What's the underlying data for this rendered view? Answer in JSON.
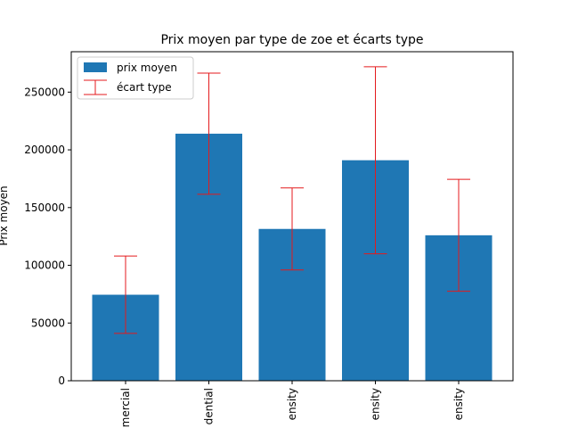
{
  "chart_data": {
    "type": "bar",
    "title": "Prix moyen par type de zoe et écarts type",
    "xlabel": "",
    "ylabel": "Prix moyen",
    "categories": [
      "mercial",
      "dential",
      "ensity",
      "ensity",
      "ensity"
    ],
    "values": [
      74500,
      214000,
      131500,
      191000,
      126000
    ],
    "error": [
      33500,
      52500,
      35500,
      81000,
      48500
    ],
    "ylim": [
      0,
      285000
    ],
    "yticks": [
      0,
      50000,
      100000,
      150000,
      200000,
      250000
    ],
    "ytick_labels": [
      "0",
      "50000",
      "100000",
      "150000",
      "200000",
      "250000"
    ],
    "legend": {
      "placement": "upper-left",
      "bar_label": "prix moyen",
      "error_label": "écart type"
    },
    "grid": false,
    "colors": {
      "bar": "#1f77b4",
      "error": "#e41a1c"
    }
  }
}
